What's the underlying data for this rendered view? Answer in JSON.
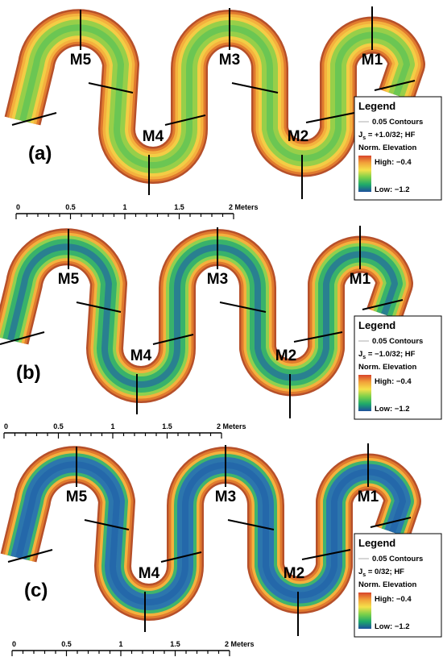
{
  "panels": [
    {
      "label": "(a)",
      "sections": [
        "M5",
        "M4",
        "M3",
        "M2",
        "M1"
      ],
      "legend": {
        "title": "Legend",
        "contours": "0.05 Contours",
        "slope": {
          "symbol": "J",
          "subscript": "s",
          "text": " = +1.0/32; HF"
        },
        "variable": "Norm. Elevation",
        "high": "High: −0.4",
        "low": "Low: −1.2"
      },
      "scale": [
        "0",
        "0.5",
        "1",
        "1.5",
        "2 Meters"
      ]
    },
    {
      "label": "(b)",
      "sections": [
        "M5",
        "M4",
        "M3",
        "M2",
        "M1"
      ],
      "legend": {
        "title": "Legend",
        "contours": "0.05 Contours",
        "slope": {
          "symbol": "J",
          "subscript": "s",
          "text": " = −1.0/32; HF"
        },
        "variable": "Norm. Elevation",
        "high": "High: −0.4",
        "low": "Low: −1.2"
      },
      "scale": [
        "0",
        "0.5",
        "1",
        "1.5",
        "2 Meters"
      ]
    },
    {
      "label": "(c)",
      "sections": [
        "M5",
        "M4",
        "M3",
        "M2",
        "M1"
      ],
      "legend": {
        "title": "Legend",
        "contours": "0.05 Contours",
        "slope": {
          "symbol": "J",
          "subscript": "s",
          "text": " = 0/32; HF"
        },
        "variable": "Norm. Elevation",
        "high": "High: −0.4",
        "low": "Low: −1.2"
      },
      "scale": [
        "0",
        "0.5",
        "1",
        "1.5",
        "2 Meters"
      ]
    }
  ]
}
